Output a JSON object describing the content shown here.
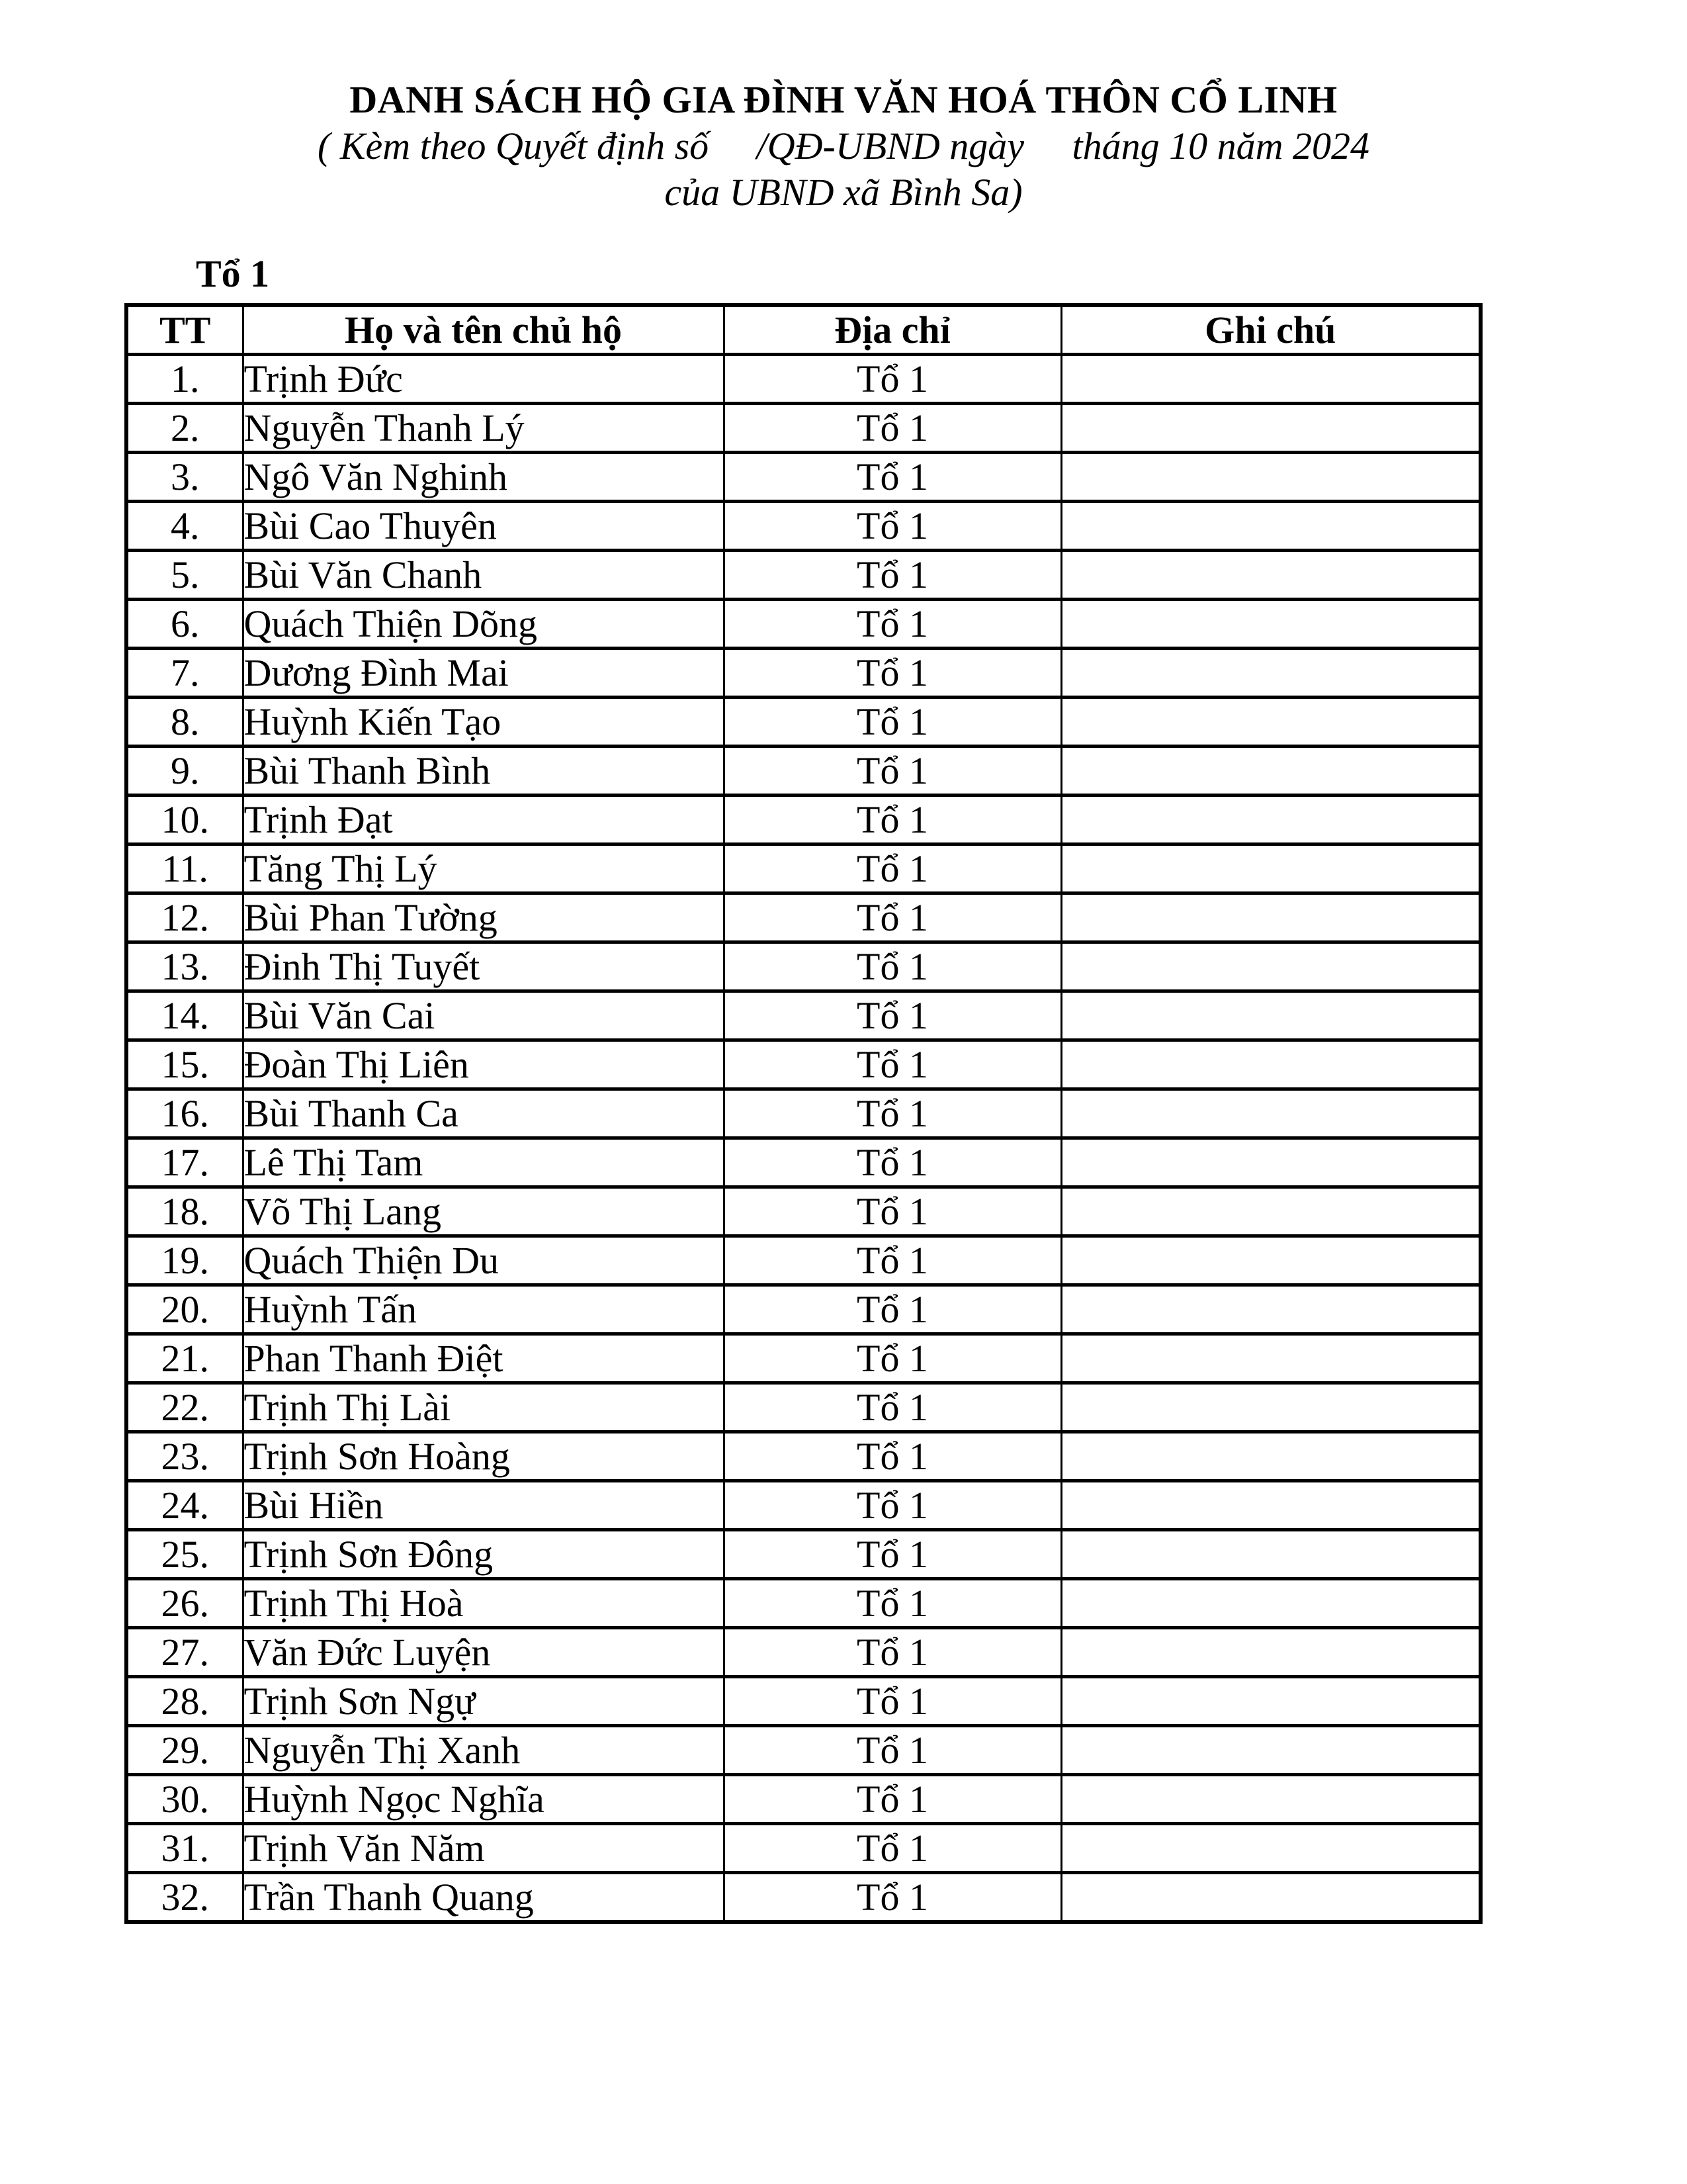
{
  "document": {
    "title": "DANH SÁCH HỘ GIA ĐÌNH VĂN HOÁ THÔN CỔ LINH",
    "subtitle_line1": "( Kèm theo Quyết định số     /QĐ-UBND ngày     tháng 10 năm 2024",
    "subtitle_line2": "của UBND xã Bình Sa)",
    "section_title": "Tổ 1"
  },
  "table": {
    "headers": [
      "TT",
      "Họ và tên chủ hộ",
      "Địa chỉ",
      "Ghi chú"
    ],
    "rows": [
      {
        "tt": "1.",
        "name": "Trịnh Đức",
        "address": "Tổ 1",
        "note": ""
      },
      {
        "tt": "2.",
        "name": "Nguyễn Thanh Lý",
        "address": "Tổ 1",
        "note": ""
      },
      {
        "tt": "3.",
        "name": "Ngô Văn Nghinh",
        "address": "Tổ 1",
        "note": ""
      },
      {
        "tt": "4.",
        "name": "Bùi Cao Thuyên",
        "address": "Tổ 1",
        "note": ""
      },
      {
        "tt": "5.",
        "name": "Bùi Văn Chanh",
        "address": "Tổ 1",
        "note": ""
      },
      {
        "tt": "6.",
        "name": "Quách Thiện Dõng",
        "address": "Tổ 1",
        "note": ""
      },
      {
        "tt": "7.",
        "name": "Dương Đình Mai",
        "address": "Tổ 1",
        "note": ""
      },
      {
        "tt": "8.",
        "name": "Huỳnh Kiến Tạo",
        "address": "Tổ 1",
        "note": ""
      },
      {
        "tt": "9.",
        "name": "Bùi Thanh Bình",
        "address": "Tổ 1",
        "note": ""
      },
      {
        "tt": "10.",
        "name": "Trịnh Đạt",
        "address": "Tổ 1",
        "note": ""
      },
      {
        "tt": "11.",
        "name": "Tăng Thị Lý",
        "address": "Tổ 1",
        "note": ""
      },
      {
        "tt": "12.",
        "name": "Bùi Phan Tường",
        "address": "Tổ 1",
        "note": ""
      },
      {
        "tt": "13.",
        "name": "Đinh Thị Tuyết",
        "address": "Tổ 1",
        "note": ""
      },
      {
        "tt": "14.",
        "name": "Bùi Văn Cai",
        "address": "Tổ 1",
        "note": ""
      },
      {
        "tt": "15.",
        "name": "Đoàn Thị Liên",
        "address": "Tổ 1",
        "note": ""
      },
      {
        "tt": "16.",
        "name": "Bùi Thanh Ca",
        "address": "Tổ 1",
        "note": ""
      },
      {
        "tt": "17.",
        "name": "Lê Thị Tam",
        "address": "Tổ 1",
        "note": ""
      },
      {
        "tt": "18.",
        "name": "Võ Thị Lang",
        "address": "Tổ 1",
        "note": ""
      },
      {
        "tt": "19.",
        "name": "Quách Thiện Du",
        "address": "Tổ 1",
        "note": ""
      },
      {
        "tt": "20.",
        "name": "Huỳnh Tấn",
        "address": "Tổ 1",
        "note": ""
      },
      {
        "tt": "21.",
        "name": "Phan Thanh Điệt",
        "address": "Tổ 1",
        "note": ""
      },
      {
        "tt": "22.",
        "name": "Trịnh Thị Lài",
        "address": "Tổ 1",
        "note": ""
      },
      {
        "tt": "23.",
        "name": "Trịnh Sơn Hoàng",
        "address": "Tổ 1",
        "note": ""
      },
      {
        "tt": "24.",
        "name": "Bùi Hiền",
        "address": "Tổ 1",
        "note": ""
      },
      {
        "tt": "25.",
        "name": "Trịnh Sơn Đông",
        "address": "Tổ 1",
        "note": ""
      },
      {
        "tt": "26.",
        "name": "Trịnh Thị Hoà",
        "address": "Tổ 1",
        "note": ""
      },
      {
        "tt": "27.",
        "name": "Văn Đức Luyện",
        "address": "Tổ 1",
        "note": ""
      },
      {
        "tt": "28.",
        "name": "Trịnh Sơn Ngự",
        "address": "Tổ 1",
        "note": ""
      },
      {
        "tt": "29.",
        "name": "Nguyễn Thị Xanh",
        "address": "Tổ 1",
        "note": ""
      },
      {
        "tt": "30.",
        "name": "Huỳnh Ngọc Nghĩa",
        "address": "Tổ 1",
        "note": ""
      },
      {
        "tt": "31.",
        "name": "Trịnh Văn Năm",
        "address": "Tổ 1",
        "note": ""
      },
      {
        "tt": "32.",
        "name": "Trần Thanh Quang",
        "address": "Tổ 1",
        "note": ""
      }
    ]
  }
}
